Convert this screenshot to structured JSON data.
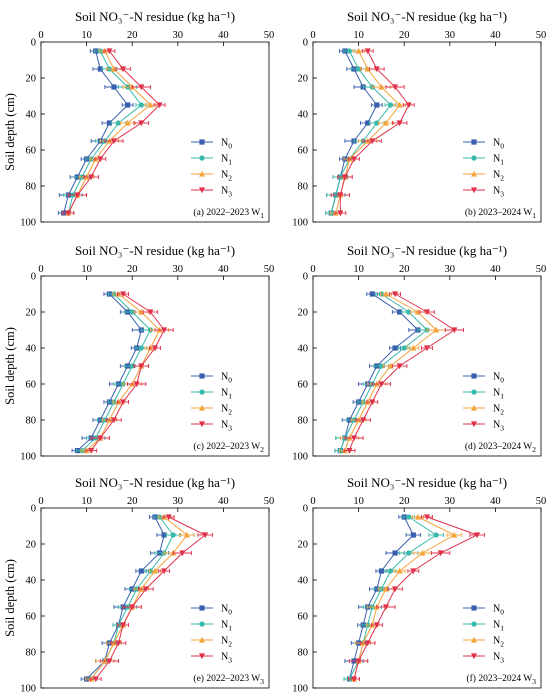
{
  "figure": {
    "x_axis_title": "Soil NO₃⁻-N residue (kg ha⁻¹)",
    "y_axis_title": "Soil depth (cm)",
    "x_ticks": [
      "0",
      "10",
      "20",
      "30",
      "40",
      "50"
    ],
    "y_ticks": [
      "0",
      "20",
      "40",
      "60",
      "80",
      "100"
    ]
  },
  "series_style": [
    {
      "name": "N0",
      "color": "#3a5fae",
      "marker": "square"
    },
    {
      "name": "N1",
      "color": "#37b8a8",
      "marker": "circle"
    },
    {
      "name": "N2",
      "color": "#f5a33b",
      "marker": "triangle-up"
    },
    {
      "name": "N3",
      "color": "#e0314b",
      "marker": "triangle-down"
    }
  ],
  "chart_data": [
    {
      "type": "line",
      "label": "(a) 2022–2023 W1",
      "xlabel": "Soil NO₃⁻-N residue (kg ha⁻¹)",
      "ylabel": "Soil depth (cm)",
      "xlim": [
        0,
        50
      ],
      "ylim": [
        0,
        100
      ],
      "y_inverted": true,
      "depth": [
        5,
        15,
        25,
        35,
        45,
        55,
        65,
        75,
        85,
        95
      ],
      "series": [
        {
          "name": "N0",
          "values": [
            12,
            13,
            16,
            19,
            15,
            13,
            10,
            8,
            6,
            5
          ]
        },
        {
          "name": "N1",
          "values": [
            13,
            15,
            19,
            22,
            17,
            14,
            11,
            9,
            7,
            6
          ]
        },
        {
          "name": "N2",
          "values": [
            14,
            16,
            20,
            24,
            19,
            15,
            12,
            10,
            8,
            6
          ]
        },
        {
          "name": "N3",
          "values": [
            15,
            18,
            22,
            26,
            22,
            16,
            13,
            11,
            8,
            6
          ]
        }
      ]
    },
    {
      "type": "line",
      "label": "(b) 2023–2024 W1",
      "xlabel": "Soil NO₃⁻-N residue (kg ha⁻¹)",
      "ylabel": "",
      "xlim": [
        0,
        50
      ],
      "ylim": [
        0,
        100
      ],
      "y_inverted": true,
      "depth": [
        5,
        15,
        25,
        35,
        45,
        55,
        65,
        75,
        85,
        95
      ],
      "series": [
        {
          "name": "N0",
          "values": [
            7,
            9,
            11,
            14,
            12,
            9,
            7,
            6,
            5,
            4
          ]
        },
        {
          "name": "N1",
          "values": [
            8,
            10,
            13,
            17,
            14,
            11,
            8,
            6,
            5,
            4
          ]
        },
        {
          "name": "N2",
          "values": [
            10,
            12,
            15,
            19,
            16,
            12,
            8,
            7,
            6,
            5
          ]
        },
        {
          "name": "N3",
          "values": [
            12,
            14,
            18,
            21,
            19,
            13,
            9,
            7,
            6,
            6
          ]
        }
      ]
    },
    {
      "type": "line",
      "label": "(c) 2022–2023 W2",
      "xlabel": "Soil NO₃⁻-N residue (kg ha⁻¹)",
      "ylabel": "Soil depth (cm)",
      "xlim": [
        0,
        50
      ],
      "ylim": [
        0,
        100
      ],
      "y_inverted": true,
      "depth": [
        10,
        20,
        30,
        40,
        50,
        60,
        70,
        80,
        90,
        97
      ],
      "series": [
        {
          "name": "N0",
          "values": [
            15,
            19,
            22,
            21,
            19,
            17,
            15,
            13,
            11,
            8
          ]
        },
        {
          "name": "N1",
          "values": [
            16,
            20,
            24,
            22,
            20,
            18,
            16,
            14,
            12,
            9
          ]
        },
        {
          "name": "N2",
          "values": [
            17,
            22,
            26,
            24,
            22,
            20,
            17,
            15,
            13,
            10
          ]
        },
        {
          "name": "N3",
          "values": [
            18,
            24,
            27,
            25,
            22,
            21,
            18,
            16,
            13,
            11
          ]
        }
      ]
    },
    {
      "type": "line",
      "label": "(d) 2023–2024 W2",
      "xlabel": "Soil NO₃⁻-N residue (kg ha⁻¹)",
      "ylabel": "",
      "xlim": [
        0,
        50
      ],
      "ylim": [
        0,
        100
      ],
      "y_inverted": true,
      "depth": [
        10,
        20,
        30,
        40,
        50,
        60,
        70,
        80,
        90,
        97
      ],
      "series": [
        {
          "name": "N0",
          "values": [
            13,
            19,
            23,
            18,
            14,
            12,
            10,
            8,
            7,
            6
          ]
        },
        {
          "name": "N1",
          "values": [
            15,
            21,
            25,
            20,
            15,
            13,
            11,
            9,
            7,
            6
          ]
        },
        {
          "name": "N2",
          "values": [
            16,
            23,
            27,
            22,
            17,
            14,
            12,
            10,
            8,
            7
          ]
        },
        {
          "name": "N3",
          "values": [
            18,
            25,
            31,
            25,
            19,
            15,
            13,
            11,
            9,
            8
          ]
        }
      ]
    },
    {
      "type": "line",
      "label": "(e) 2022–2023 W3",
      "xlabel": "Soil NO₃⁻-N residue (kg ha⁻¹)",
      "ylabel": "Soil depth (cm)",
      "xlim": [
        0,
        50
      ],
      "ylim": [
        0,
        100
      ],
      "y_inverted": true,
      "depth": [
        5,
        15,
        25,
        35,
        45,
        55,
        65,
        75,
        85,
        95
      ],
      "series": [
        {
          "name": "N0",
          "values": [
            25,
            27,
            26,
            22,
            20,
            18,
            17,
            15,
            14,
            10
          ]
        },
        {
          "name": "N1",
          "values": [
            26,
            29,
            27,
            24,
            21,
            19,
            17,
            16,
            14,
            11
          ]
        },
        {
          "name": "N2",
          "values": [
            27,
            32,
            29,
            25,
            22,
            20,
            18,
            16,
            14,
            11
          ]
        },
        {
          "name": "N3",
          "values": [
            28,
            36,
            31,
            27,
            23,
            20,
            18,
            17,
            15,
            12
          ]
        }
      ]
    },
    {
      "type": "line",
      "label": "(f) 2023–2024 W3",
      "xlabel": "Soil NO₃⁻-N residue (kg ha⁻¹)",
      "ylabel": "",
      "xlim": [
        0,
        50
      ],
      "ylim": [
        0,
        100
      ],
      "y_inverted": true,
      "depth": [
        5,
        15,
        25,
        35,
        45,
        55,
        65,
        75,
        85,
        95
      ],
      "series": [
        {
          "name": "N0",
          "values": [
            20,
            22,
            18,
            15,
            14,
            12,
            11,
            10,
            9,
            8
          ]
        },
        {
          "name": "N1",
          "values": [
            21,
            27,
            21,
            17,
            15,
            13,
            12,
            11,
            10,
            8
          ]
        },
        {
          "name": "N2",
          "values": [
            23,
            31,
            24,
            19,
            16,
            14,
            13,
            11,
            10,
            9
          ]
        },
        {
          "name": "N3",
          "values": [
            25,
            36,
            28,
            22,
            18,
            16,
            14,
            12,
            10,
            9
          ]
        }
      ]
    }
  ]
}
